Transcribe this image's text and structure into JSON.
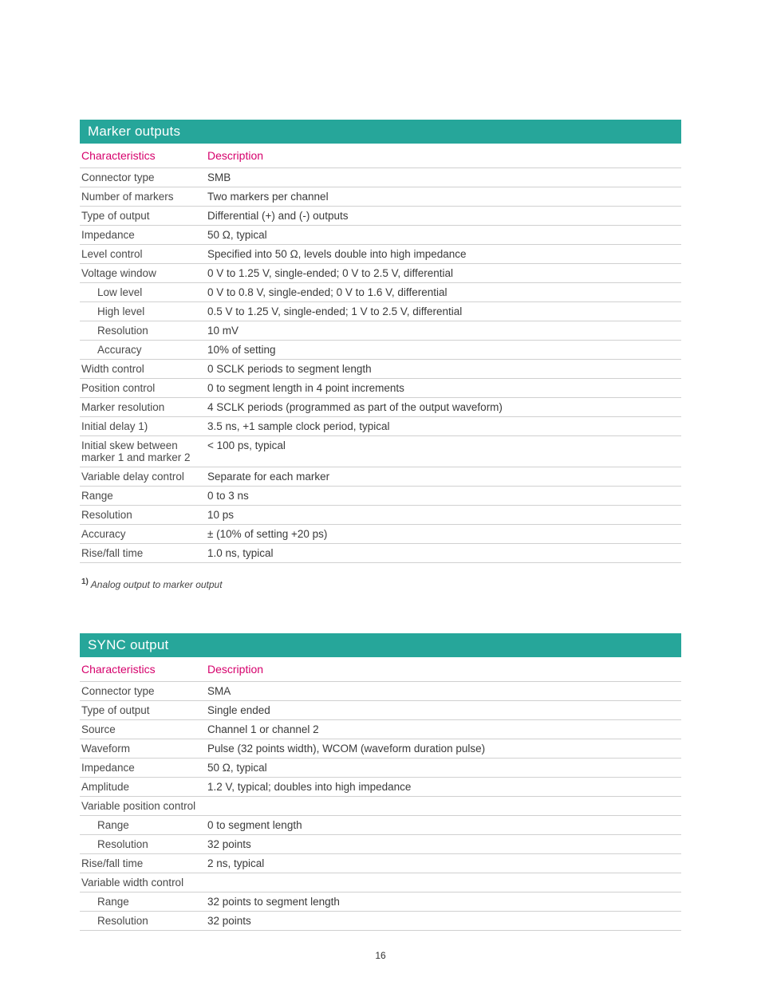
{
  "colors": {
    "header_bg": "#26a69a",
    "header_text": "#ffffff",
    "accent": "#d6006c",
    "row_border": "#d0d0d0",
    "text": "#3a3a3a"
  },
  "page_number": "16",
  "tables": [
    {
      "title": "Marker outputs",
      "col_char": "Characteristics",
      "col_desc": "Description",
      "rows": [
        {
          "label": "Connector type",
          "value": "SMB",
          "indent": false
        },
        {
          "label": "Number of markers",
          "value": "Two markers per channel",
          "indent": false
        },
        {
          "label": "Type of output",
          "value": "Differential (+) and (-) outputs",
          "indent": false
        },
        {
          "label": "Impedance",
          "value": "50 Ω, typical",
          "indent": false
        },
        {
          "label": "Level control",
          "value": "Specified into 50 Ω, levels double into high impedance",
          "indent": false
        },
        {
          "label": "Voltage window",
          "value": "0 V to 1.25 V, single-ended; 0 V to 2.5 V, differential",
          "indent": false
        },
        {
          "label": "Low level",
          "value": "0 V to 0.8 V, single-ended; 0 V to 1.6 V, differential",
          "indent": true
        },
        {
          "label": "High level",
          "value": "0.5 V to 1.25 V, single-ended; 1 V to 2.5 V, differential",
          "indent": true
        },
        {
          "label": "Resolution",
          "value": "10 mV",
          "indent": true
        },
        {
          "label": "Accuracy",
          "value": "10% of setting",
          "indent": true
        },
        {
          "label": "Width control",
          "value": "0 SCLK periods to segment length",
          "indent": false
        },
        {
          "label": "Position control",
          "value": "0 to segment length in 4 point increments",
          "indent": false
        },
        {
          "label": "Marker resolution",
          "value": "4 SCLK periods (programmed as part of the output waveform)",
          "indent": false
        },
        {
          "label": "Initial delay 1)",
          "value": "3.5 ns, +1 sample clock period,  typical",
          "indent": false
        },
        {
          "label": "Initial skew between marker 1 and marker 2",
          "value": "< 100 ps, typical",
          "indent": false
        },
        {
          "label": "Variable delay control",
          "value": "Separate for each marker",
          "indent": false
        },
        {
          "label": "Range",
          "value": "0 to 3 ns",
          "indent": false
        },
        {
          "label": "Resolution",
          "value": "10 ps",
          "indent": false
        },
        {
          "label": "Accuracy",
          "value": "± (10% of setting +20 ps)",
          "indent": false
        },
        {
          "label": "Rise/fall time",
          "value": "1.0 ns, typical",
          "indent": false
        }
      ],
      "footnote_sup": "1)",
      "footnote": " Analog output to marker output"
    },
    {
      "title": "SYNC output",
      "col_char": "Characteristics",
      "col_desc": "Description",
      "rows": [
        {
          "label": "Connector type",
          "value": "SMA",
          "indent": false
        },
        {
          "label": "Type of output",
          "value": "Single ended",
          "indent": false
        },
        {
          "label": "Source",
          "value": "Channel 1 or channel 2",
          "indent": false
        },
        {
          "label": "Waveform",
          "value": "Pulse (32 points width), WCOM (waveform duration pulse)",
          "indent": false
        },
        {
          "label": "Impedance",
          "value": "50 Ω, typical",
          "indent": false
        },
        {
          "label": "Amplitude",
          "value": "1.2 V, typical; doubles into high impedance",
          "indent": false
        },
        {
          "label": "Variable position control",
          "value": "",
          "indent": false
        },
        {
          "label": "Range",
          "value": "0 to segment length",
          "indent": true
        },
        {
          "label": "Resolution",
          "value": "32 points",
          "indent": true
        },
        {
          "label": "Rise/fall time",
          "value": "2 ns, typical",
          "indent": false
        },
        {
          "label": "Variable width control",
          "value": "",
          "indent": false
        },
        {
          "label": "Range",
          "value": "32 points to segment length",
          "indent": true
        },
        {
          "label": "Resolution",
          "value": "32 points",
          "indent": true
        }
      ],
      "footnote_sup": "",
      "footnote": ""
    }
  ]
}
